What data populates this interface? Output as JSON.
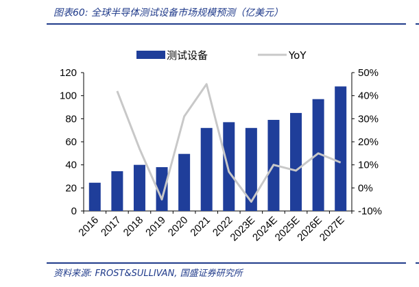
{
  "title": "图表60:  全球半导体测试设备市场规模预测（亿美元）",
  "source": "资料来源:  FROST&SULLIVAN,  国盛证券研究所",
  "colors": {
    "bar": "#1f3e9a",
    "line": "#c8c8c8",
    "accent": "#1f3a8a"
  },
  "chart_data": {
    "type": "bar",
    "categories": [
      "2016",
      "2017",
      "2018",
      "2019",
      "2020",
      "2021",
      "2022",
      "2023E",
      "2024E",
      "2025E",
      "2026E",
      "2027E"
    ],
    "series": [
      {
        "name": "测试设备",
        "type": "bar",
        "axis": "left",
        "values": [
          24.5,
          34.5,
          40,
          38,
          49.5,
          72,
          77,
          72,
          79,
          85,
          97,
          108
        ]
      },
      {
        "name": "YoY",
        "type": "line",
        "axis": "right",
        "values": [
          null,
          42,
          17,
          -5,
          31,
          45,
          7,
          -6,
          10,
          7.5,
          15,
          11
        ]
      }
    ],
    "yleft": {
      "min": 0,
      "max": 120,
      "ticks": [
        "0",
        "20",
        "40",
        "60",
        "80",
        "100",
        "120"
      ]
    },
    "yright": {
      "min": -10,
      "max": 50,
      "ticks": [
        "-10%",
        "0%",
        "10%",
        "20%",
        "30%",
        "40%",
        "50%"
      ]
    },
    "legend_position": "top",
    "grid": false
  }
}
